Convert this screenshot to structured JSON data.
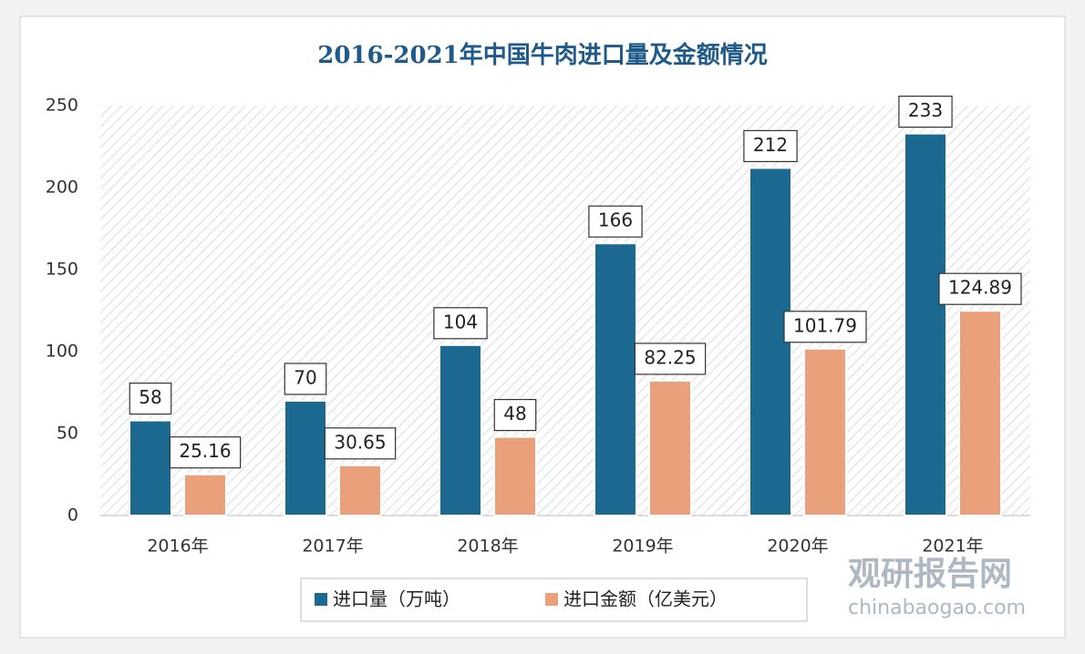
{
  "chart_data": {
    "type": "bar",
    "title": "2016-2021年中国牛肉进口量及金额情况",
    "categories": [
      "2016年",
      "2017年",
      "2018年",
      "2019年",
      "2020年",
      "2021年"
    ],
    "series": [
      {
        "name": "进口量（万吨）",
        "color": "#1b6891",
        "values": [
          58,
          70,
          104,
          166,
          212,
          233
        ]
      },
      {
        "name": "进口金额（亿美元）",
        "color": "#e9a07b",
        "values": [
          25.16,
          30.65,
          48,
          82.25,
          101.79,
          124.89
        ]
      }
    ],
    "ylim": [
      0,
      250
    ],
    "yticks": [
      0,
      50,
      100,
      150,
      200,
      250
    ],
    "legend": "bottom",
    "watermark": {
      "name": "观研报告网",
      "site": "chinabaogao.com"
    }
  }
}
